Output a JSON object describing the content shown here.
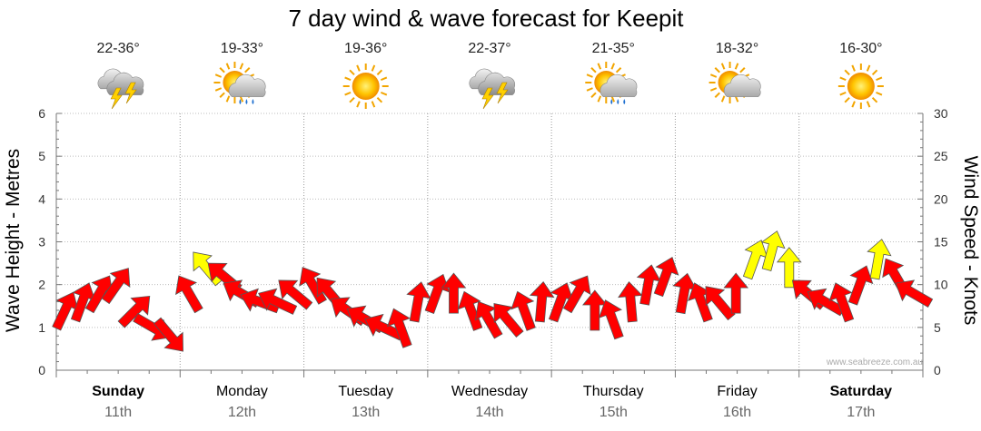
{
  "chart_data": {
    "type": "line",
    "title": "7 day wind & wave forecast for Keepit",
    "ylabel_left": "Wave Height - Metres",
    "ylabel_right": "Wind Speed - Knots",
    "ylim_left": [
      0,
      6
    ],
    "ylim_right": [
      0,
      30
    ],
    "yticks_left": [
      "0",
      "1",
      "2",
      "3",
      "4",
      "5",
      "6"
    ],
    "yticks_right": [
      "0",
      "5",
      "10",
      "15",
      "20",
      "25",
      "30"
    ],
    "grid": true,
    "credit": "www.seabreeze.com.au",
    "days": [
      {
        "name": "Sunday",
        "date": "11th",
        "temp": "22-36°",
        "icon": "thunderstorm-icon",
        "bold": true
      },
      {
        "name": "Monday",
        "date": "12th",
        "temp": "19-33°",
        "icon": "sun-cloud-rain-icon",
        "bold": false
      },
      {
        "name": "Tuesday",
        "date": "13th",
        "temp": "19-36°",
        "icon": "sun-icon",
        "bold": false
      },
      {
        "name": "Wednesday",
        "date": "14th",
        "temp": "22-37°",
        "icon": "thunderstorm-icon",
        "bold": false
      },
      {
        "name": "Thursday",
        "date": "15th",
        "temp": "21-35°",
        "icon": "sun-cloud-rain-icon",
        "bold": false
      },
      {
        "name": "Friday",
        "date": "16th",
        "temp": "18-32°",
        "icon": "sun-cloud-icon",
        "bold": false
      },
      {
        "name": "Saturday",
        "date": "17th",
        "temp": "16-30°",
        "icon": "sun-icon",
        "bold": true
      }
    ],
    "series": [
      {
        "name": "Wind",
        "units": "knots",
        "time_days": [
          0.0,
          0.14,
          0.28,
          0.42,
          0.57,
          0.71,
          0.85,
          1.0,
          1.14,
          1.28,
          1.42,
          1.57,
          1.71,
          1.85,
          2.0,
          2.14,
          2.28,
          2.42,
          2.57,
          2.71,
          2.85,
          3.0,
          3.14,
          3.28,
          3.42,
          3.57,
          3.71,
          3.85,
          4.0,
          4.14,
          4.28,
          4.42,
          4.57,
          4.71,
          4.85,
          5.0,
          5.14,
          5.28,
          5.42,
          5.57,
          5.71,
          5.85,
          6.0,
          6.14,
          6.28,
          6.42,
          6.57,
          6.71,
          6.85
        ],
        "speed": [
          7,
          8,
          9,
          10,
          7,
          5,
          4,
          9,
          12,
          11,
          9,
          8,
          8,
          9,
          10,
          9,
          7,
          6,
          5,
          5,
          8,
          9,
          9,
          7,
          6,
          6,
          7,
          8,
          8,
          9,
          7,
          6,
          8,
          10,
          11,
          9,
          8,
          8,
          9,
          13,
          14,
          12,
          9,
          8,
          8,
          10,
          13,
          11,
          9
        ],
        "direction_deg": [
          205,
          200,
          210,
          215,
          225,
          300,
          320,
          150,
          140,
          130,
          120,
          110,
          115,
          130,
          150,
          140,
          125,
          120,
          115,
          160,
          190,
          200,
          180,
          160,
          150,
          140,
          160,
          185,
          200,
          210,
          180,
          160,
          175,
          190,
          200,
          190,
          160,
          140,
          180,
          200,
          195,
          180,
          130,
          120,
          160,
          200,
          190,
          150,
          120
        ]
      }
    ]
  }
}
